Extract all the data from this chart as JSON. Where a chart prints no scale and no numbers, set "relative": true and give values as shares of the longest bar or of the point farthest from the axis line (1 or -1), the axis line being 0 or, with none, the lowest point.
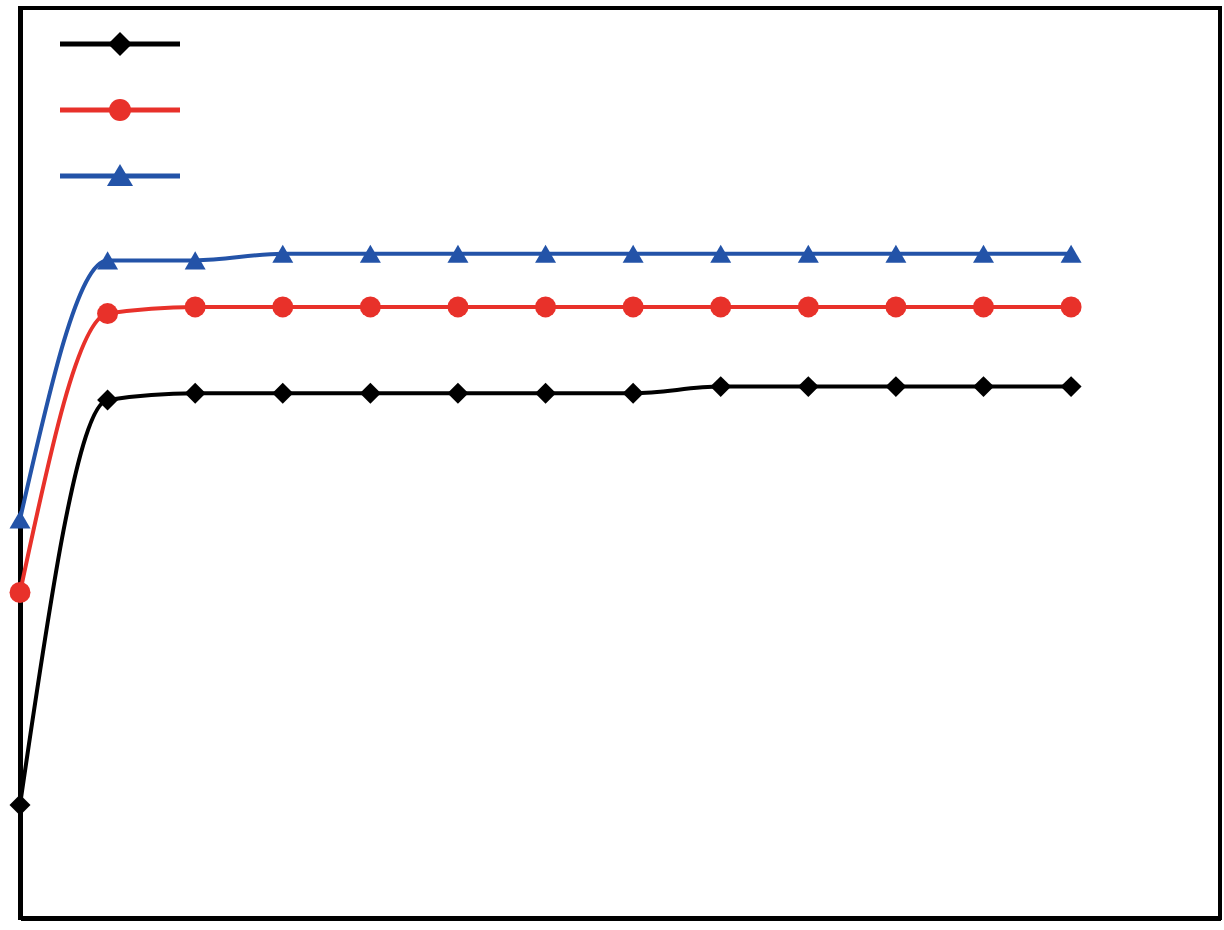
{
  "chart_data": {
    "type": "line",
    "relative": true,
    "categories": [
      null,
      null,
      null,
      null,
      null,
      null,
      null,
      null,
      null,
      null,
      null,
      null,
      null
    ],
    "series": [
      {
        "color": "#000000",
        "marker": "diamond",
        "values": [
          0.17,
          0.78,
          0.79,
          0.79,
          0.79,
          0.79,
          0.79,
          0.79,
          0.8,
          0.8,
          0.8,
          0.8,
          0.8
        ]
      },
      {
        "color": "#e8312a",
        "marker": "circle",
        "values": [
          0.49,
          0.91,
          0.92,
          0.92,
          0.92,
          0.92,
          0.92,
          0.92,
          0.92,
          0.92,
          0.92,
          0.92,
          0.92
        ]
      },
      {
        "color": "#2353a8",
        "marker": "triangle",
        "values": [
          0.6,
          0.99,
          0.99,
          1,
          1,
          1,
          1,
          1,
          1,
          1,
          1,
          1,
          1
        ]
      }
    ]
  }
}
